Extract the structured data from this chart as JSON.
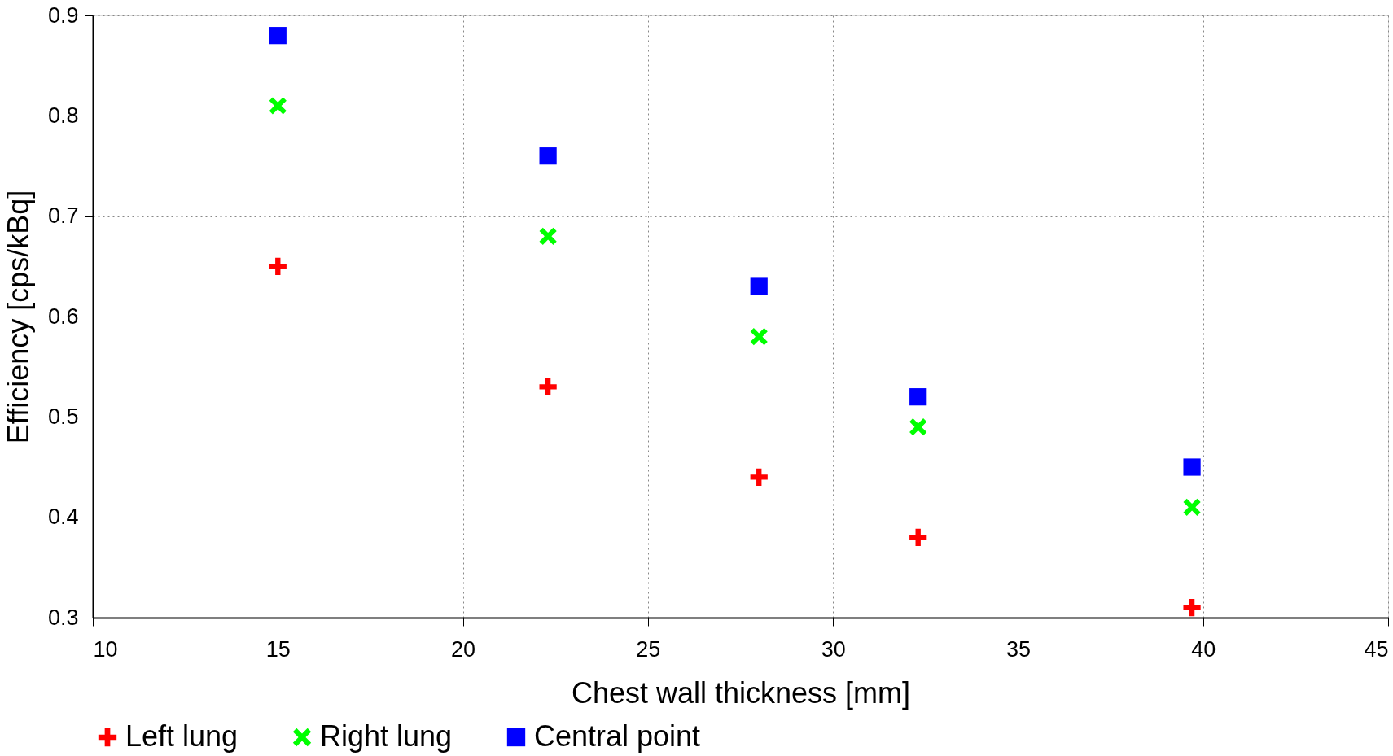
{
  "chart_data": {
    "type": "scatter",
    "xlabel": "Chest wall thickness [mm]",
    "ylabel": "Efficiency [cps/kBq]",
    "x": [
      15.0,
      22.3,
      28.0,
      32.3,
      39.7
    ],
    "series": [
      {
        "name": "Left lung",
        "color": "#ff0000",
        "marker": "cross",
        "values": [
          0.65,
          0.53,
          0.44,
          0.38,
          0.31
        ]
      },
      {
        "name": "Right lung",
        "color": "#00ff00",
        "marker": "x",
        "values": [
          0.81,
          0.68,
          0.58,
          0.49,
          0.41
        ]
      },
      {
        "name": "Central point",
        "color": "#0000ff",
        "marker": "square",
        "values": [
          0.88,
          0.76,
          0.63,
          0.52,
          0.45
        ]
      }
    ],
    "xlim": [
      10,
      45
    ],
    "xticks": [
      10,
      15,
      20,
      25,
      30,
      35,
      40,
      45
    ],
    "ylim": [
      0.3,
      0.9
    ],
    "yticks": [
      0.3,
      0.4,
      0.5,
      0.6,
      0.7,
      0.8,
      0.9
    ],
    "grid": true,
    "legend": "bottom"
  }
}
